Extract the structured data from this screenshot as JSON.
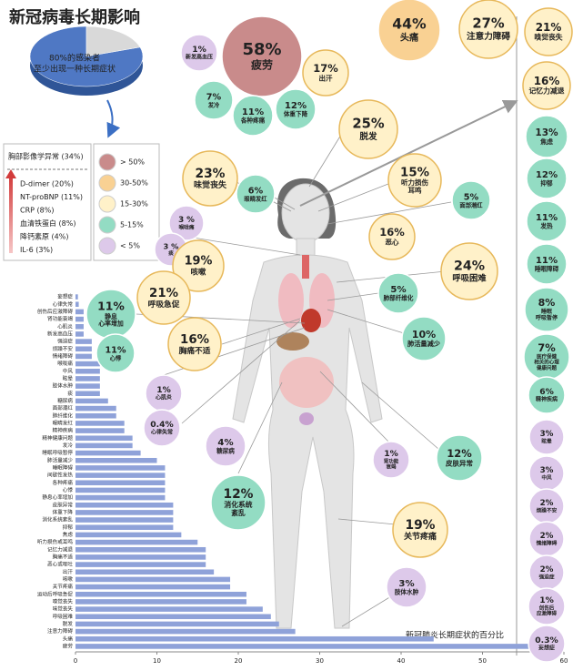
{
  "title": "新冠病毒长期影响",
  "chart_data": [
    {
      "type": "pie",
      "values": [
        80,
        20
      ],
      "colors": [
        "#4f78c4",
        "#d9d9d9"
      ],
      "annotation": [
        "80%的感染者",
        "至少出现一种长期症状"
      ]
    },
    {
      "type": "bar",
      "orientation": "horizontal",
      "color": "#8fa2d9",
      "categories": [
        "妄想症",
        "心律失常",
        "创伤后应激障碍",
        "肾功能衰竭",
        "心肌炎",
        "新发高血压",
        "强迫症",
        "烦躁不安",
        "情绪障碍",
        "喉咙痛",
        "中风",
        "眩晕",
        "肢体水肿",
        "痰",
        "糖尿病",
        "面部潮红",
        "肺纤维化",
        "眼睛发红",
        "精神疾病",
        "精神健康问题",
        "发冷",
        "睡眠呼吸暂停",
        "肺活量减少",
        "睡眠障碍",
        "间歇性发热",
        "各种疼痛",
        "心悸",
        "静息心率增加",
        "皮肤异常",
        "体重下降",
        "消化系统紊乱",
        "抑郁",
        "焦虑",
        "听力损伤或耳鸣",
        "记忆力减退",
        "胸痛不适",
        "恶心或呕吐",
        "出汗",
        "咳嗽",
        "关节疼痛",
        "运动后呼吸急促",
        "嗅觉丧失",
        "味觉丧失",
        "呼吸困难",
        "脱发",
        "注意力障碍",
        "头痛",
        "疲劳"
      ],
      "values": [
        0.3,
        0.4,
        1,
        1,
        1,
        1,
        2,
        2,
        2,
        3,
        3,
        3,
        3,
        3,
        4,
        5,
        5,
        6,
        6,
        7,
        7,
        8,
        10,
        11,
        11,
        11,
        11,
        11,
        12,
        12,
        12,
        12,
        13,
        15,
        16,
        16,
        16,
        17,
        19,
        19,
        21,
        21,
        23,
        24,
        25,
        27,
        44,
        58
      ],
      "xlim": [
        0,
        60
      ],
      "xticks": [
        0,
        10,
        20,
        30,
        40,
        50,
        60
      ],
      "xlabel": "新冠肺炎长期症状的百分比"
    }
  ],
  "lab_findings": {
    "title": "胸部影像学异常 (34%)",
    "items": [
      "D-dimer (20%)",
      "NT-proBNP (11%)",
      "CRP (8%)",
      "血清铁蛋白 (8%)",
      "降钙素原 (4%)",
      "IL-6 (3%)"
    ]
  },
  "severity_legend": [
    {
      "label": "> 50%",
      "color": "#c98b8b"
    },
    {
      "label": "30-50%",
      "color": "#f9d193"
    },
    {
      "label": "15-30%",
      "color": "#fff1c9"
    },
    {
      "label": "5-15%",
      "color": "#93dcc3"
    },
    {
      "label": "< 5%",
      "color": "#ddc9ea"
    }
  ],
  "bubbles": [
    {
      "percent": "58%",
      "label": [
        "疲劳"
      ],
      "color": "#c98b8b"
    },
    {
      "percent": "44%",
      "label": [
        "头痛"
      ],
      "color": "#f9d193"
    },
    {
      "percent": "27%",
      "label": [
        "注意力障碍"
      ],
      "color": "#fff1c9"
    },
    {
      "percent": "21%",
      "label": [
        "嗅觉丧失"
      ],
      "color": "#fff1c9"
    },
    {
      "percent": "16%",
      "label": [
        "记忆力减退"
      ],
      "color": "#fff1c9"
    },
    {
      "percent": "13%",
      "label": [
        "焦虑"
      ],
      "color": "#93dcc3"
    },
    {
      "percent": "12%",
      "label": [
        "抑郁"
      ],
      "color": "#93dcc3"
    },
    {
      "percent": "11%",
      "label": [
        "发热"
      ],
      "color": "#93dcc3"
    },
    {
      "percent": "11%",
      "label": [
        "睡眠障碍"
      ],
      "color": "#93dcc3"
    },
    {
      "percent": "8%",
      "label": [
        "睡眠",
        "呼吸暂停"
      ],
      "color": "#93dcc3"
    },
    {
      "percent": "7%",
      "label": [
        "医疗保健",
        "相关的心理",
        "健康问题"
      ],
      "color": "#93dcc3"
    },
    {
      "percent": "6%",
      "label": [
        "精神疾病"
      ],
      "color": "#93dcc3"
    },
    {
      "percent": "3%",
      "label": [
        "眩晕"
      ],
      "color": "#ddc9ea"
    },
    {
      "percent": "3%",
      "label": [
        "中风"
      ],
      "color": "#ddc9ea"
    },
    {
      "percent": "2%",
      "label": [
        "烦躁不安"
      ],
      "color": "#ddc9ea"
    },
    {
      "percent": "2%",
      "label": [
        "情绪障碍"
      ],
      "color": "#ddc9ea"
    },
    {
      "percent": "2%",
      "label": [
        "强迫症"
      ],
      "color": "#ddc9ea"
    },
    {
      "percent": "1%",
      "label": [
        "创伤后",
        "应激障碍"
      ],
      "color": "#ddc9ea"
    },
    {
      "percent": "0.3%",
      "label": [
        "妄想症"
      ],
      "color": "#ddc9ea"
    },
    {
      "percent": "1%",
      "label": [
        "新发高血压"
      ],
      "color": "#ddc9ea"
    },
    {
      "percent": "17%",
      "label": [
        "出汗"
      ],
      "color": "#fff1c9"
    },
    {
      "percent": "7%",
      "label": [
        "发冷"
      ],
      "color": "#93dcc3"
    },
    {
      "percent": "11%",
      "label": [
        "各种疼痛"
      ],
      "color": "#93dcc3"
    },
    {
      "percent": "12%",
      "label": [
        "体重下降"
      ],
      "color": "#93dcc3"
    },
    {
      "percent": "25%",
      "label": [
        "脱发"
      ],
      "color": "#fff1c9"
    },
    {
      "percent": "23%",
      "label": [
        "味觉丧失"
      ],
      "color": "#fff1c9"
    },
    {
      "percent": "6%",
      "label": [
        "眼睛发红"
      ],
      "color": "#93dcc3"
    },
    {
      "percent": "15%",
      "label": [
        "听力损伤",
        "耳鸣"
      ],
      "color": "#fff1c9"
    },
    {
      "percent": "5%",
      "label": [
        "面部潮红"
      ],
      "color": "#93dcc3"
    },
    {
      "percent": "3 %",
      "label": [
        "喉咙痛"
      ],
      "color": "#ddc9ea"
    },
    {
      "percent": "16%",
      "label": [
        "恶心"
      ],
      "color": "#fff1c9"
    },
    {
      "percent": "3 %",
      "label": [
        "痰"
      ],
      "color": "#ddc9ea"
    },
    {
      "percent": "19%",
      "label": [
        "咳嗽"
      ],
      "color": "#fff1c9"
    },
    {
      "percent": "24%",
      "label": [
        "呼吸困难"
      ],
      "color": "#fff1c9"
    },
    {
      "percent": "21%",
      "label": [
        "呼吸急促"
      ],
      "color": "#fff1c9"
    },
    {
      "percent": "5%",
      "label": [
        "肺部纤维化"
      ],
      "color": "#93dcc3"
    },
    {
      "percent": "11%",
      "label": [
        "静息",
        "心率增加"
      ],
      "color": "#93dcc3"
    },
    {
      "percent": "16%",
      "label": [
        "胸痛不适"
      ],
      "color": "#fff1c9"
    },
    {
      "percent": "10%",
      "label": [
        "肺活量减少"
      ],
      "color": "#93dcc3"
    },
    {
      "percent": "11%",
      "label": [
        "心悸"
      ],
      "color": "#93dcc3"
    },
    {
      "percent": "1%",
      "label": [
        "心肌炎"
      ],
      "color": "#ddc9ea"
    },
    {
      "percent": "0.4%",
      "label": [
        "心律失常"
      ],
      "color": "#ddc9ea"
    },
    {
      "percent": "4%",
      "label": [
        "糖尿病"
      ],
      "color": "#ddc9ea"
    },
    {
      "percent": "1%",
      "label": [
        "肾功能",
        "衰竭"
      ],
      "color": "#ddc9ea"
    },
    {
      "percent": "12%",
      "label": [
        "皮肤异常"
      ],
      "color": "#93dcc3"
    },
    {
      "percent": "12%",
      "label": [
        "消化系统",
        "紊乱"
      ],
      "color": "#93dcc3"
    },
    {
      "percent": "19%",
      "label": [
        "关节疼痛"
      ],
      "color": "#fff1c9"
    },
    {
      "percent": "3%",
      "label": [
        "肢体水肿"
      ],
      "color": "#ddc9ea"
    }
  ]
}
